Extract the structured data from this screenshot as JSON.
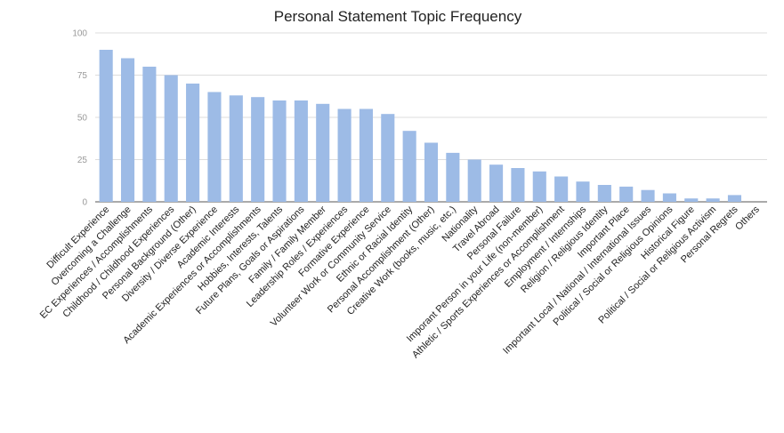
{
  "chart_data": {
    "type": "bar",
    "title": "Personal Statement Topic Frequency",
    "xlabel": "",
    "ylabel": "",
    "ylim": [
      0,
      100
    ],
    "yticks": [
      "0",
      "25",
      "50",
      "75",
      "100"
    ],
    "grid": true,
    "legend": "none",
    "bar_color": "#9dbbe6",
    "gridline_color": "#dddddd",
    "categories": [
      "Difficult Experience",
      "Overcoming a Challenge",
      "EC Experiences / Accomplishments",
      "Childhood / Childhood Experiences",
      "Personal Background (Other)",
      "Diversity / Diverse Experience",
      "Academic Interests",
      "Academic Experiences or Accomplishments",
      "Hobbies, Interests, Talents",
      "Future Plans, Goals or Aspirations",
      "Family / Family Member",
      "Leadership Roles / Experiences",
      "Formative Experience",
      "Volunteer Work or Community Service",
      "Ethnic or Racial Identity",
      "Personal Accomplishment (Other)",
      "Creative Work (books, music, etc.)",
      "Nationality",
      "Travel Abroad",
      "Personal Failure",
      "Imporant Person in your Life (non-member)",
      "Athletic / Sports Experiences or Accomplishment",
      "Employment / Internships",
      "Religion / Religious Identity",
      "Important Place",
      "Important Local / National / International Issues",
      "Political / Social or Religious Opinions",
      "Historical Figure",
      "Political / Social or Religious Activism",
      "Personal Regrets",
      "Others"
    ],
    "values": [
      90,
      85,
      80,
      75,
      70,
      65,
      63,
      62,
      60,
      60,
      58,
      55,
      55,
      52,
      42,
      35,
      29,
      25,
      22,
      20,
      18,
      15,
      12,
      10,
      9,
      7,
      5,
      2,
      2,
      4,
      0
    ]
  }
}
